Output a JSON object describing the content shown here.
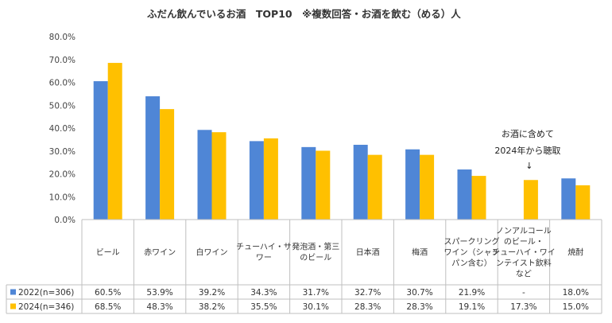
{
  "chart_data": {
    "type": "bar",
    "title": "ふだん飲んでいるお酒　TOP10　※複数回答・お酒を飲む（める）人",
    "categories": [
      [
        "ビール"
      ],
      [
        "赤ワイン"
      ],
      [
        "白ワイン"
      ],
      [
        "チューハイ・サ",
        "ワー"
      ],
      [
        "発泡酒・第三",
        "のビール"
      ],
      [
        "日本酒"
      ],
      [
        "梅酒"
      ],
      [
        "スパークリング",
        "ワイン（シャン",
        "パン含む）"
      ],
      [
        "ノンアルコール",
        "のビール・",
        "チューハイ・ワイ",
        "ンテイスト飲料",
        "など"
      ],
      [
        "焼酎"
      ]
    ],
    "series": [
      {
        "name": "2022(n=306)",
        "color": "#4f86d6",
        "values": [
          60.5,
          53.9,
          39.2,
          34.3,
          31.7,
          32.7,
          30.7,
          21.9,
          null,
          18.0
        ],
        "labels": [
          "60.5%",
          "53.9%",
          "39.2%",
          "34.3%",
          "31.7%",
          "32.7%",
          "30.7%",
          "21.9%",
          "-",
          "18.0%"
        ]
      },
      {
        "name": "2024(n=346)",
        "color": "#ffc000",
        "values": [
          68.5,
          48.3,
          38.2,
          35.5,
          30.1,
          28.3,
          28.3,
          19.1,
          17.3,
          15.0
        ],
        "labels": [
          "68.5%",
          "48.3%",
          "38.2%",
          "35.5%",
          "30.1%",
          "28.3%",
          "28.3%",
          "19.1%",
          "17.3%",
          "15.0%"
        ]
      }
    ],
    "ylim": [
      0,
      80
    ],
    "yticks": [
      "0.0%",
      "10.0%",
      "20.0%",
      "30.0%",
      "40.0%",
      "50.0%",
      "60.0%",
      "70.0%",
      "80.0%"
    ],
    "grid": false,
    "annotation": {
      "lines": [
        "お酒に含めて",
        "2024年から聴取"
      ],
      "arrow": "↓"
    }
  }
}
